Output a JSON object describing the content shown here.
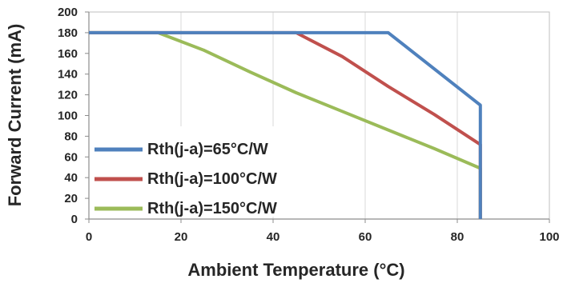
{
  "chart_data": {
    "type": "line",
    "title": "",
    "xlabel": "Ambient Temperature (°C)",
    "ylabel": "Forward Current (mA)",
    "xlim": [
      0,
      100
    ],
    "ylim": [
      0,
      200
    ],
    "x_ticks": [
      "0",
      "20",
      "40",
      "60",
      "80",
      "100"
    ],
    "y_ticks": [
      "0",
      "20",
      "40",
      "60",
      "80",
      "100",
      "120",
      "140",
      "160",
      "180",
      "200"
    ],
    "grid": "vertical",
    "legend_position": "bottom-left",
    "series": [
      {
        "name": "Rth(j-a)=65°C/W",
        "color": "#4f81bd",
        "points": [
          [
            0,
            180
          ],
          [
            65,
            180
          ],
          [
            85,
            110
          ],
          [
            85,
            0
          ]
        ]
      },
      {
        "name": "Rth(j-a)=100°C/W",
        "color": "#c0504d",
        "points": [
          [
            0,
            180
          ],
          [
            45,
            180
          ],
          [
            55,
            157
          ],
          [
            65,
            128
          ],
          [
            75,
            101
          ],
          [
            85,
            72
          ],
          [
            85,
            0
          ]
        ]
      },
      {
        "name": "Rth(j-a)=150°C/W",
        "color": "#9bbb59",
        "points": [
          [
            0,
            180
          ],
          [
            15,
            180
          ],
          [
            25,
            163
          ],
          [
            35,
            142
          ],
          [
            45,
            122
          ],
          [
            55,
            104
          ],
          [
            65,
            86
          ],
          [
            75,
            68
          ],
          [
            85,
            49
          ],
          [
            85,
            0
          ]
        ]
      }
    ]
  }
}
